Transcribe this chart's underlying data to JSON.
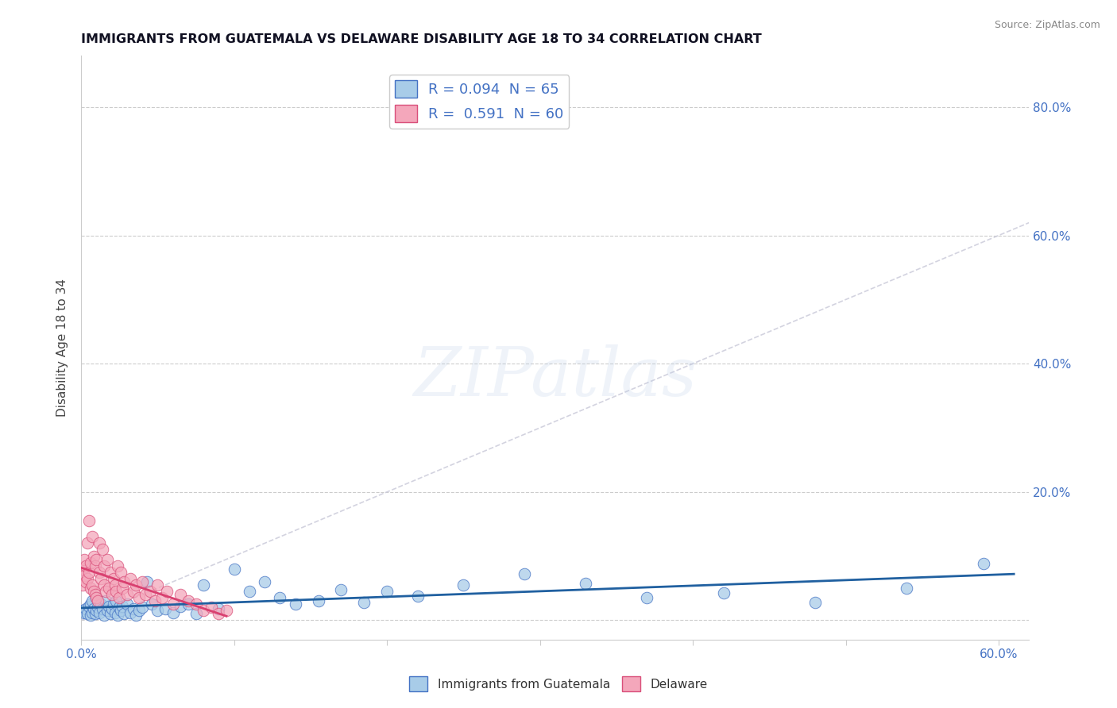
{
  "title": "IMMIGRANTS FROM GUATEMALA VS DELAWARE DISABILITY AGE 18 TO 34 CORRELATION CHART",
  "source_text": "Source: ZipAtlas.com",
  "ylabel": "Disability Age 18 to 34",
  "xlim": [
    0.0,
    0.62
  ],
  "ylim": [
    -0.03,
    0.88
  ],
  "blue_R": "0.094",
  "blue_N": "65",
  "pink_R": "0.591",
  "pink_N": "60",
  "blue_color": "#a8cce8",
  "pink_color": "#f4a7bb",
  "blue_edge_color": "#4472c4",
  "pink_edge_color": "#d94f7a",
  "blue_line_color": "#2060a0",
  "pink_line_color": "#d94070",
  "diag_line_color": "#c8c8d8",
  "watermark": "ZIPatlas",
  "legend_label_blue": "Immigrants from Guatemala",
  "legend_label_pink": "Delaware",
  "tick_color": "#4472c4",
  "blue_scatter_x": [
    0.001,
    0.002,
    0.003,
    0.004,
    0.005,
    0.006,
    0.006,
    0.007,
    0.007,
    0.008,
    0.009,
    0.01,
    0.01,
    0.011,
    0.012,
    0.013,
    0.014,
    0.015,
    0.016,
    0.017,
    0.018,
    0.019,
    0.02,
    0.021,
    0.022,
    0.023,
    0.024,
    0.025,
    0.026,
    0.027,
    0.028,
    0.03,
    0.032,
    0.034,
    0.036,
    0.038,
    0.04,
    0.043,
    0.046,
    0.05,
    0.055,
    0.06,
    0.065,
    0.07,
    0.075,
    0.08,
    0.09,
    0.1,
    0.11,
    0.12,
    0.13,
    0.14,
    0.155,
    0.17,
    0.185,
    0.2,
    0.22,
    0.25,
    0.29,
    0.33,
    0.37,
    0.42,
    0.48,
    0.54,
    0.59
  ],
  "blue_scatter_y": [
    0.015,
    0.012,
    0.018,
    0.01,
    0.022,
    0.008,
    0.025,
    0.012,
    0.03,
    0.018,
    0.01,
    0.015,
    0.035,
    0.02,
    0.012,
    0.025,
    0.018,
    0.008,
    0.03,
    0.015,
    0.022,
    0.01,
    0.018,
    0.025,
    0.012,
    0.03,
    0.008,
    0.02,
    0.015,
    0.022,
    0.01,
    0.025,
    0.012,
    0.018,
    0.008,
    0.015,
    0.02,
    0.06,
    0.025,
    0.015,
    0.018,
    0.012,
    0.022,
    0.025,
    0.01,
    0.055,
    0.018,
    0.08,
    0.045,
    0.06,
    0.035,
    0.025,
    0.03,
    0.048,
    0.028,
    0.045,
    0.038,
    0.055,
    0.072,
    0.058,
    0.035,
    0.042,
    0.028,
    0.05,
    0.088
  ],
  "pink_scatter_x": [
    0.001,
    0.001,
    0.002,
    0.002,
    0.003,
    0.003,
    0.004,
    0.004,
    0.005,
    0.005,
    0.006,
    0.006,
    0.007,
    0.007,
    0.008,
    0.008,
    0.009,
    0.009,
    0.01,
    0.01,
    0.011,
    0.012,
    0.012,
    0.013,
    0.014,
    0.015,
    0.015,
    0.016,
    0.017,
    0.018,
    0.019,
    0.02,
    0.021,
    0.022,
    0.023,
    0.024,
    0.025,
    0.026,
    0.027,
    0.028,
    0.03,
    0.032,
    0.034,
    0.036,
    0.038,
    0.04,
    0.042,
    0.045,
    0.048,
    0.05,
    0.053,
    0.056,
    0.06,
    0.065,
    0.07,
    0.075,
    0.08,
    0.085,
    0.09,
    0.095
  ],
  "pink_scatter_y": [
    0.055,
    0.08,
    0.07,
    0.095,
    0.06,
    0.085,
    0.065,
    0.12,
    0.075,
    0.155,
    0.05,
    0.09,
    0.055,
    0.13,
    0.045,
    0.1,
    0.04,
    0.085,
    0.035,
    0.095,
    0.03,
    0.075,
    0.12,
    0.065,
    0.11,
    0.055,
    0.085,
    0.045,
    0.095,
    0.05,
    0.075,
    0.04,
    0.065,
    0.055,
    0.045,
    0.085,
    0.035,
    0.075,
    0.05,
    0.06,
    0.04,
    0.065,
    0.045,
    0.055,
    0.035,
    0.06,
    0.04,
    0.045,
    0.03,
    0.055,
    0.035,
    0.045,
    0.025,
    0.04,
    0.03,
    0.025,
    0.015,
    0.02,
    0.01,
    0.015
  ]
}
